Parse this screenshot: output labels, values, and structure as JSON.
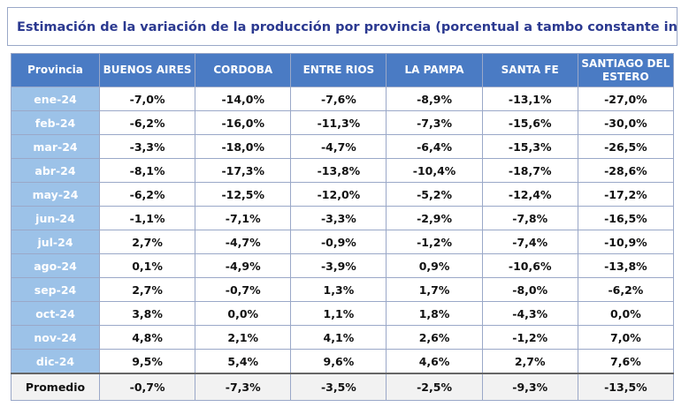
{
  "title": "Estimación de la variación de la producción por provincia (porcentual a tambo constante interanual",
  "table": {
    "header": [
      "Provincia",
      "BUENOS AIRES",
      "CORDOBA",
      "ENTRE RIOS",
      "LA PAMPA",
      "SANTA FE",
      "SANTIAGO DEL ESTERO"
    ],
    "rows": [
      [
        "ene-24",
        "-7,0%",
        "-14,0%",
        "-7,6%",
        "-8,9%",
        "-13,1%",
        "-27,0%"
      ],
      [
        "feb-24",
        "-6,2%",
        "-16,0%",
        "-11,3%",
        "-7,3%",
        "-15,6%",
        "-30,0%"
      ],
      [
        "mar-24",
        "-3,3%",
        "-18,0%",
        "-4,7%",
        "-6,4%",
        "-15,3%",
        "-26,5%"
      ],
      [
        "abr-24",
        "-8,1%",
        "-17,3%",
        "-13,8%",
        "-10,4%",
        "-18,7%",
        "-28,6%"
      ],
      [
        "may-24",
        "-6,2%",
        "-12,5%",
        "-12,0%",
        "-5,2%",
        "-12,4%",
        "-17,2%"
      ],
      [
        "jun-24",
        "-1,1%",
        "-7,1%",
        "-3,3%",
        "-2,9%",
        "-7,8%",
        "-16,5%"
      ],
      [
        "jul-24",
        "2,7%",
        "-4,7%",
        "-0,9%",
        "-1,2%",
        "-7,4%",
        "-10,9%"
      ],
      [
        "ago-24",
        "0,1%",
        "-4,9%",
        "-3,9%",
        "0,9%",
        "-10,6%",
        "-13,8%"
      ],
      [
        "sep-24",
        "2,7%",
        "-0,7%",
        "1,3%",
        "1,7%",
        "-8,0%",
        "-6,2%"
      ],
      [
        "oct-24",
        "3,8%",
        "0,0%",
        "1,1%",
        "1,8%",
        "-4,3%",
        "0,0%"
      ],
      [
        "nov-24",
        "4,8%",
        "2,1%",
        "4,1%",
        "2,6%",
        "-1,2%",
        "7,0%"
      ],
      [
        "dic-24",
        "9,5%",
        "5,4%",
        "9,6%",
        "4,6%",
        "2,7%",
        "7,6%"
      ]
    ],
    "footer": [
      "Promedio",
      "-0,7%",
      "-7,3%",
      "-3,5%",
      "-2,5%",
      "-9,3%",
      "-13,5%"
    ]
  }
}
